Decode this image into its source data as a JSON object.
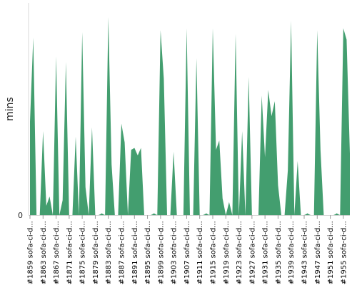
{
  "chart_data": {
    "type": "area",
    "title": "",
    "xlabel": "",
    "ylabel": "mins",
    "y_ticks": [
      "0"
    ],
    "ylim": [
      0,
      100
    ],
    "color": "#439e6f",
    "grid": false,
    "legend": "none",
    "x_tick_labels": [
      "#1859 sofa-ci-d...",
      "#1863 sofa-ci-d...",
      "#1867 sofa-ci-d...",
      "#1871 sofa-ci-d...",
      "#1875 sofa-ci-d...",
      "#1879 sofa-ci-d...",
      "#1883 sofa-ci-d...",
      "#1887 sofa-ci-d...",
      "#1891 sofa-ci-d...",
      "#1895 sofa-ci-d...",
      "#1899 sofa-ci-d...",
      "#1903 sofa-ci-d...",
      "#1907 sofa-ci-d...",
      "#1911 sofa-ci-d...",
      "#1915 sofa-ci-d...",
      "#1919 sofa-ci-d...",
      "#1923 sofa-ci-d...",
      "#1927 sofa-ci-d...",
      "#1931 sofa-ci-d...",
      "#1935 sofa-ci-d...",
      "#1939 sofa-ci-d...",
      "#1943 sofa-ci-d...",
      "#1947 sofa-ci-d...",
      "#1951 sofa-ci-d...",
      "#1955 sofa-ci-d..."
    ],
    "x": [
      1859,
      1860,
      1861,
      1862,
      1863,
      1864,
      1865,
      1866,
      1867,
      1868,
      1869,
      1870,
      1871,
      1872,
      1873,
      1874,
      1875,
      1876,
      1877,
      1878,
      1879,
      1880,
      1881,
      1882,
      1883,
      1884,
      1885,
      1886,
      1887,
      1888,
      1889,
      1890,
      1891,
      1892,
      1893,
      1894,
      1895,
      1896,
      1897,
      1898,
      1899,
      1900,
      1901,
      1902,
      1903,
      1904,
      1905,
      1906,
      1907,
      1908,
      1909,
      1910,
      1911,
      1912,
      1913,
      1914,
      1915,
      1916,
      1917,
      1918,
      1919,
      1920,
      1921,
      1922,
      1923,
      1924,
      1925,
      1926,
      1927,
      1928,
      1929,
      1930,
      1931,
      1932,
      1933,
      1934,
      1935,
      1936,
      1937,
      1938,
      1939,
      1940,
      1941,
      1942,
      1943,
      1944,
      1945,
      1946,
      1947,
      1948,
      1949,
      1950,
      1951,
      1952,
      1953,
      1954,
      1955,
      1956,
      1957
    ],
    "values": [
      50,
      95,
      0,
      0,
      45,
      5,
      10,
      0,
      85,
      0,
      8,
      82,
      0,
      0,
      42,
      0,
      98,
      15,
      0,
      47,
      0,
      0,
      1,
      0,
      106,
      27,
      0,
      0,
      49,
      39,
      0,
      35,
      36,
      32,
      36,
      0,
      0,
      0,
      1,
      0,
      99,
      73,
      0,
      0,
      34,
      0,
      0,
      0,
      100,
      0,
      0,
      84,
      0,
      0,
      1,
      0,
      100,
      35,
      40,
      9,
      0,
      7,
      0,
      97,
      0,
      45,
      0,
      74,
      0,
      0,
      0,
      64,
      31,
      67,
      53,
      61,
      16,
      0,
      0,
      24,
      104,
      0,
      29,
      0,
      0,
      1,
      0,
      0,
      99,
      35,
      0,
      0,
      0,
      0,
      1,
      0,
      100,
      94,
      33
    ]
  }
}
